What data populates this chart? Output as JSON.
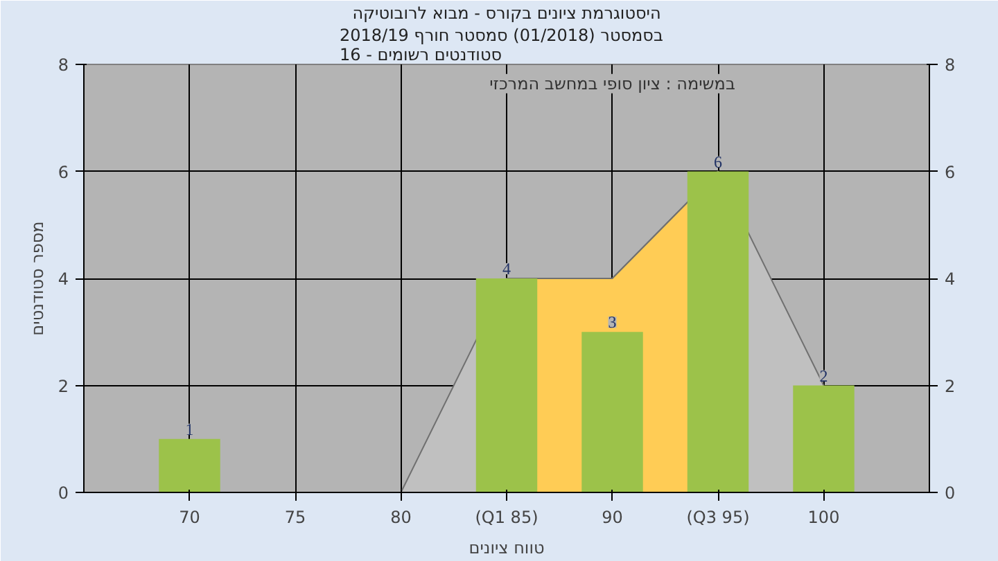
{
  "chart_data": {
    "type": "bar",
    "title": "היסטוגרמת ציונים בקורס - מבוא לרובוטיקה",
    "subtitle": "בסמסטר  (01/2018)  סמסטר חורף 2018/19\nסטודנטים רשומים - 16",
    "xlabel": "טווח ציונים",
    "ylabel": "מספר סטודנטים",
    "annotations": [
      "במשימה : ציון סופי במחשב המרכזי"
    ],
    "categories": [
      "70",
      "75",
      "80",
      "(Q1 85)",
      "90",
      "(Q3 95)",
      "100"
    ],
    "series": [
      {
        "type": "area",
        "color": "#c0c0c0",
        "values": [
          null,
          null,
          0,
          4,
          4,
          6,
          2
        ]
      },
      {
        "type": "area",
        "color": "#ffcc55",
        "values": [
          null,
          null,
          null,
          4,
          4,
          6,
          null
        ]
      },
      {
        "color": "#9cc24a",
        "values": [
          1,
          0,
          0,
          4,
          3,
          6,
          2
        ],
        "value_labels": [
          "1",
          null,
          null,
          "4",
          "3",
          "6",
          "2"
        ]
      }
    ],
    "ylim": [
      0,
      8
    ],
    "yticks": [
      0,
      2,
      4,
      6,
      8
    ],
    "y2lim": [
      0,
      8
    ],
    "y2ticks": [
      0,
      2,
      4,
      6,
      8
    ],
    "grid": true
  }
}
